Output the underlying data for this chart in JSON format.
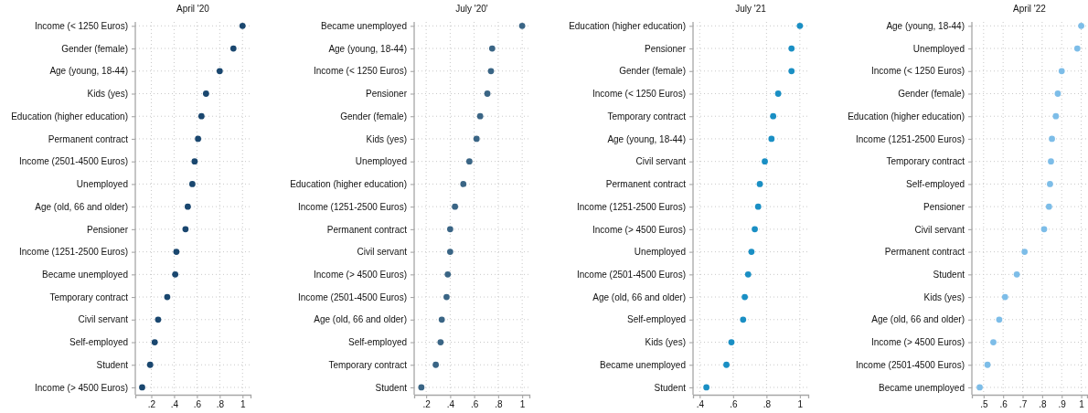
{
  "chart_data": [
    {
      "type": "scatter",
      "orientation": "horizontal",
      "title": "April '20",
      "marker": "circle",
      "grid": true,
      "color": "#1a476f",
      "categories": [
        "Income (< 1250 Euros)",
        "Gender (female)",
        "Age (young, 18-44)",
        "Kids (yes)",
        "Education (higher education)",
        "Permanent contract",
        "Income (2501-4500 Euros)",
        "Unemployed",
        "Age (old, 66 and older)",
        "Pensioner",
        "Income (1251-2500 Euros)",
        "Became unemployed",
        "Temporary contract",
        "Civil servant",
        "Self-employed",
        "Student",
        "Income (> 4500 Euros)"
      ],
      "values": [
        1,
        0.92,
        0.8,
        0.68,
        0.64,
        0.61,
        0.58,
        0.56,
        0.52,
        0.5,
        0.42,
        0.41,
        0.34,
        0.26,
        0.23,
        0.19,
        0.12
      ],
      "xlim": [
        0.06,
        1.07
      ],
      "xticks": [
        {
          "value": 0.2,
          "label": ".2"
        },
        {
          "value": 0.4,
          "label": ".4"
        },
        {
          "value": 0.6,
          "label": ".6"
        },
        {
          "value": 0.8,
          "label": ".8"
        },
        {
          "value": 1,
          "label": "1"
        }
      ]
    },
    {
      "type": "scatter",
      "orientation": "horizontal",
      "title": "July '20'",
      "marker": "circle",
      "grid": true,
      "color": "#3a6585",
      "categories": [
        "Became unemployed",
        "Age (young, 18-44)",
        "Income (< 1250 Euros)",
        "Pensioner",
        "Gender (female)",
        "Kids (yes)",
        "Unemployed",
        "Education (higher education)",
        "Income (1251-2500 Euros)",
        "Permanent contract",
        "Civil servant",
        "Income (> 4500 Euros)",
        "Income (2501-4500 Euros)",
        "Age (old, 66 and older)",
        "Self-employed",
        "Temporary contract",
        "Student"
      ],
      "values": [
        1,
        0.75,
        0.74,
        0.71,
        0.65,
        0.62,
        0.56,
        0.51,
        0.44,
        0.4,
        0.4,
        0.38,
        0.37,
        0.33,
        0.32,
        0.28,
        0.16
      ],
      "xlim": [
        0.1,
        1.06
      ],
      "xticks": [
        {
          "value": 0.2,
          "label": ".2"
        },
        {
          "value": 0.4,
          "label": ".4"
        },
        {
          "value": 0.6,
          "label": ".6"
        },
        {
          "value": 0.8,
          "label": ".8"
        },
        {
          "value": 1,
          "label": "1"
        }
      ]
    },
    {
      "type": "scatter",
      "orientation": "horizontal",
      "title": "July '21",
      "marker": "circle",
      "grid": true,
      "color": "#1a8fc4",
      "categories": [
        "Education (higher education)",
        "Pensioner",
        "Gender (female)",
        "Income (< 1250 Euros)",
        "Temporary contract",
        "Age (young, 18-44)",
        "Civil servant",
        "Permanent contract",
        "Income (1251-2500 Euros)",
        "Income (> 4500 Euros)",
        "Unemployed",
        "Income (2501-4500 Euros)",
        "Age (old, 66 and older)",
        "Self-employed",
        "Kids (yes)",
        "Became unemployed",
        "Student"
      ],
      "values": [
        1,
        0.95,
        0.95,
        0.87,
        0.84,
        0.83,
        0.79,
        0.76,
        0.75,
        0.73,
        0.71,
        0.69,
        0.67,
        0.66,
        0.59,
        0.56,
        0.44
      ],
      "xlim": [
        0.36,
        1.05
      ],
      "xticks": [
        {
          "value": 0.4,
          "label": ".4"
        },
        {
          "value": 0.6,
          "label": ".6"
        },
        {
          "value": 0.8,
          "label": ".8"
        },
        {
          "value": 1,
          "label": "1"
        }
      ]
    },
    {
      "type": "scatter",
      "orientation": "horizontal",
      "title": "April '22",
      "marker": "circle",
      "grid": true,
      "color": "#7dbde8",
      "categories": [
        "Age (young, 18-44)",
        "Unemployed",
        "Income (< 1250 Euros)",
        "Gender (female)",
        "Education (higher education)",
        "Income (1251-2500 Euros)",
        "Temporary contract",
        "Self-employed",
        "Pensioner",
        "Civil servant",
        "Permanent contract",
        "Student",
        "Kids (yes)",
        "Age (old, 66 and older)",
        "Income (> 4500 Euros)",
        "Income (2501-4500 Euros)",
        "Became unemployed"
      ],
      "values": [
        1,
        0.98,
        0.9,
        0.88,
        0.87,
        0.85,
        0.845,
        0.84,
        0.835,
        0.81,
        0.71,
        0.67,
        0.61,
        0.58,
        0.55,
        0.52,
        0.48
      ],
      "xlim": [
        0.44,
        1.03
      ],
      "xticks": [
        {
          "value": 0.5,
          "label": ".5"
        },
        {
          "value": 0.6,
          "label": ".6"
        },
        {
          "value": 0.7,
          "label": ".7"
        },
        {
          "value": 0.8,
          "label": ".8"
        },
        {
          "value": 0.9,
          "label": ".9"
        },
        {
          "value": 1,
          "label": "1"
        }
      ]
    }
  ]
}
